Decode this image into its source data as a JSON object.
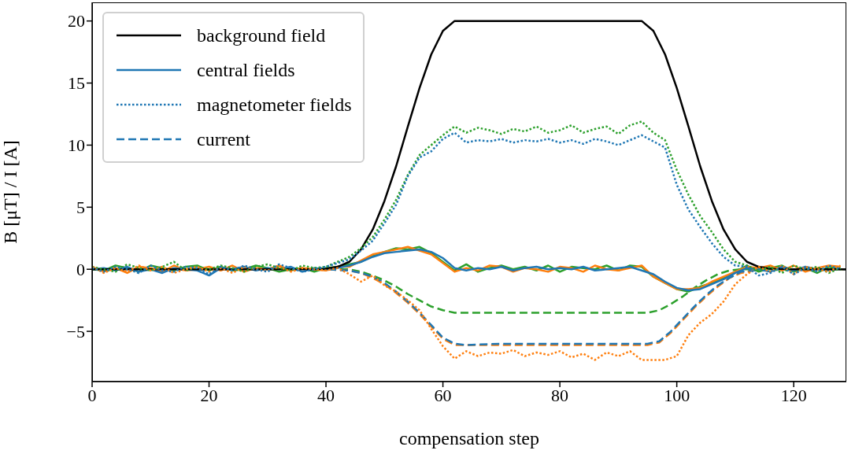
{
  "chart_data": {
    "type": "line",
    "xlabel": "compensation step",
    "ylabel": "B [μT] / I [A]",
    "xlim": [
      0,
      129
    ],
    "ylim": [
      -9.05,
      21.5
    ],
    "xticks": [
      0,
      20,
      40,
      60,
      80,
      100,
      120
    ],
    "yticks": [
      -5,
      0,
      5,
      10,
      15,
      20
    ],
    "legend": "top left",
    "marker": "none",
    "x": [
      0,
      2,
      4,
      6,
      8,
      10,
      12,
      14,
      16,
      18,
      20,
      22,
      24,
      26,
      28,
      30,
      32,
      34,
      36,
      38,
      40,
      42,
      44,
      46,
      48,
      50,
      52,
      54,
      56,
      58,
      60,
      62,
      64,
      66,
      68,
      70,
      72,
      74,
      76,
      78,
      80,
      82,
      84,
      86,
      88,
      90,
      92,
      94,
      96,
      98,
      100,
      102,
      104,
      106,
      108,
      110,
      112,
      114,
      116,
      118,
      120,
      122,
      124,
      126,
      128
    ],
    "series": [
      {
        "name": "background field",
        "color": "#000000",
        "line_style": "solid",
        "x": [
          0,
          10,
          20,
          30,
          38,
          40,
          42,
          44,
          46,
          48,
          50,
          52,
          54,
          56,
          58,
          60,
          62,
          94,
          96,
          98,
          100,
          102,
          104,
          106,
          108,
          110,
          112,
          114,
          116,
          120,
          129
        ],
        "values": [
          0,
          0,
          0,
          0,
          0,
          0.05,
          0.2,
          0.6,
          1.6,
          3.2,
          5.5,
          8.3,
          11.5,
          14.6,
          17.3,
          19.2,
          20,
          20,
          19.2,
          17.3,
          14.6,
          11.5,
          8.3,
          5.5,
          3.2,
          1.6,
          0.6,
          0.2,
          0.05,
          0,
          0
        ]
      },
      {
        "name": "central fields",
        "color": "#1f77b4",
        "line_style": "solid",
        "values": [
          0,
          0.1,
          -0.1,
          0.2,
          -0.2,
          0,
          -0.3,
          0.1,
          0,
          -0.1,
          -0.5,
          0.1,
          0,
          0.2,
          -0.1,
          0.1,
          0,
          0.2,
          -0.2,
          0.1,
          0,
          0.1,
          0.3,
          0.6,
          1.0,
          1.3,
          1.4,
          1.5,
          1.6,
          1.4,
          0.9,
          0.1,
          -0.1,
          0.1,
          0,
          0.2,
          -0.1,
          0.1,
          0.2,
          0,
          0.1,
          0,
          0.2,
          -0.1,
          0,
          0.1,
          0.2,
          -0.1,
          -0.4,
          -1.0,
          -1.5,
          -1.7,
          -1.6,
          -1.2,
          -0.8,
          -0.3,
          0.1,
          0,
          -0.2,
          0.2,
          -0.1,
          0.2,
          0,
          -0.1,
          0.1
        ]
      },
      {
        "color": "#ff7f0e",
        "line_style": "solid",
        "values": [
          0.2,
          -0.2,
          0.1,
          -0.3,
          0.2,
          0.1,
          -0.2,
          0.3,
          -0.1,
          0,
          0.2,
          -0.1,
          0.3,
          -0.2,
          0.1,
          0,
          0.3,
          -0.1,
          0.1,
          0,
          -0.1,
          0.2,
          0.2,
          0.7,
          1.2,
          1.4,
          1.6,
          1.8,
          1.5,
          1.2,
          0.5,
          -0.2,
          0.1,
          -0.1,
          0.3,
          0.2,
          -0.2,
          0.1,
          0,
          -0.2,
          0.2,
          0.1,
          -0.2,
          0.3,
          0,
          -0.1,
          0.1,
          0.3,
          -0.6,
          -1.1,
          -1.6,
          -1.6,
          -1.5,
          -1.0,
          -0.6,
          -0.2,
          0.2,
          0.1,
          0.3,
          -0.1,
          0.3,
          -0.2,
          0.1,
          0.3,
          0.2
        ]
      },
      {
        "color": "#2ca02c",
        "line_style": "solid",
        "values": [
          0,
          -0.1,
          0.3,
          0.1,
          -0.2,
          0.3,
          0.1,
          -0.1,
          0.2,
          0.3,
          -0.1,
          0.2,
          -0.1,
          0,
          0.3,
          0.1,
          -0.2,
          0,
          0.1,
          -0.2,
          0.1,
          0.2,
          0.4,
          0.6,
          1.1,
          1.4,
          1.7,
          1.6,
          1.8,
          1.3,
          0.6,
          -0.1,
          0.4,
          -0.2,
          0.1,
          0.3,
          0,
          0.2,
          -0.1,
          0.3,
          -0.2,
          0.2,
          0.1,
          0,
          0.3,
          -0.1,
          0.3,
          0.2,
          -0.6,
          -1.1,
          -1.6,
          -1.8,
          -1.4,
          -1.1,
          -0.7,
          -0.2,
          0.3,
          -0.2,
          0.1,
          0.3,
          -0.2,
          0.1,
          -0.3,
          0.2,
          0
        ]
      },
      {
        "name": "magnetometer fields",
        "color": "#1f77b4",
        "line_style": "dotted",
        "values": [
          0.1,
          -0.2,
          0.2,
          0,
          -0.3,
          0.3,
          -0.1,
          -0.2,
          0.2,
          0.1,
          -0.4,
          0.2,
          -0.1,
          0.3,
          0,
          -0.2,
          0.4,
          0.1,
          -0.2,
          0,
          0.2,
          0.5,
          0.8,
          1.5,
          2.3,
          3.7,
          5.2,
          7.5,
          9.0,
          9.5,
          10.5,
          11.0,
          10.2,
          10.4,
          10.3,
          10.5,
          10.2,
          10.4,
          10.3,
          10.5,
          10.2,
          10.4,
          10.1,
          10.5,
          10.3,
          10.0,
          10.4,
          10.8,
          10.3,
          9.8,
          6.8,
          4.8,
          3.4,
          2.1,
          1.0,
          0.3,
          0.2,
          -0.5,
          -0.3,
          0.2,
          -0.4,
          0.1,
          -0.2,
          0.3,
          0
        ]
      },
      {
        "color": "#ff7f0e",
        "line_style": "dotted",
        "values": [
          0.2,
          -0.3,
          0.1,
          -0.2,
          0.3,
          -0.1,
          0.2,
          -0.3,
          0,
          0.2,
          -0.2,
          0.1,
          -0.3,
          0.2,
          0,
          -0.1,
          0.2,
          -0.2,
          0.1,
          0,
          -0.1,
          0.1,
          -0.4,
          -1.0,
          -0.5,
          -1.3,
          -1.8,
          -2.5,
          -3.3,
          -4.8,
          -6.2,
          -7.2,
          -6.6,
          -7.0,
          -6.7,
          -6.8,
          -6.5,
          -7.0,
          -6.7,
          -6.9,
          -6.6,
          -7.1,
          -6.8,
          -7.3,
          -6.7,
          -7.0,
          -6.6,
          -7.3,
          -7.3,
          -7.3,
          -7.0,
          -5.3,
          -4.3,
          -3.6,
          -2.6,
          -1.2,
          -0.4,
          0.2,
          -0.2,
          0.3,
          -0.4,
          0.2,
          0,
          -0.2,
          0.3
        ]
      },
      {
        "color": "#2ca02c",
        "line_style": "dotted",
        "values": [
          0.2,
          0,
          -0.2,
          0.4,
          0.1,
          -0.1,
          0.2,
          0.6,
          -0.1,
          0.2,
          0,
          0.3,
          0.1,
          -0.2,
          0.2,
          0.4,
          0.1,
          -0.1,
          0.3,
          0.1,
          0.2,
          0.6,
          1.0,
          1.7,
          2.6,
          4.0,
          5.6,
          7.6,
          9.2,
          10.0,
          10.8,
          11.5,
          11.0,
          11.4,
          11.2,
          10.9,
          11.3,
          11.1,
          11.5,
          11.0,
          11.2,
          11.6,
          11.0,
          11.3,
          11.5,
          10.9,
          11.6,
          11.9,
          11.0,
          10.4,
          8.0,
          6.0,
          4.3,
          3.0,
          1.6,
          0.6,
          0.3,
          -0.1,
          0.2,
          -0.3,
          0.3,
          0,
          0.2,
          -0.3,
          0.1
        ]
      },
      {
        "name": "current",
        "color": "#1f77b4",
        "line_style": "dashed",
        "x": [
          0,
          10,
          20,
          30,
          40,
          44,
          46,
          48,
          50,
          52,
          54,
          56,
          58,
          60,
          62,
          64,
          70,
          80,
          90,
          95,
          97,
          99,
          101,
          103,
          105,
          107,
          109,
          111,
          113,
          120,
          129
        ],
        "values": [
          0,
          0,
          0,
          0,
          0,
          -0.1,
          -0.3,
          -0.6,
          -1.1,
          -1.8,
          -2.6,
          -3.5,
          -4.5,
          -5.5,
          -6.0,
          -6.1,
          -6.0,
          -6.0,
          -6.0,
          -6.0,
          -5.8,
          -5.0,
          -4.0,
          -3.0,
          -2.1,
          -1.3,
          -0.7,
          -0.2,
          -0.1,
          0,
          0
        ]
      },
      {
        "color": "#ff7f0e",
        "line_style": "dashed",
        "x": [
          0,
          10,
          20,
          30,
          40,
          44,
          46,
          48,
          50,
          52,
          54,
          56,
          58,
          60,
          62,
          64,
          70,
          80,
          90,
          95,
          97,
          99,
          101,
          103,
          105,
          107,
          109,
          111,
          113,
          120,
          129
        ],
        "values": [
          0,
          0,
          0,
          0,
          0,
          -0.1,
          -0.3,
          -0.7,
          -1.2,
          -1.9,
          -2.7,
          -3.6,
          -4.6,
          -5.6,
          -6.1,
          -6.1,
          -6.1,
          -6.1,
          -6.1,
          -6.1,
          -5.9,
          -5.1,
          -4.1,
          -3.1,
          -2.2,
          -1.4,
          -0.7,
          -0.3,
          -0.1,
          0,
          0
        ]
      },
      {
        "color": "#2ca02c",
        "line_style": "dashed",
        "x": [
          0,
          10,
          20,
          30,
          40,
          44,
          46,
          48,
          50,
          52,
          54,
          56,
          58,
          60,
          62,
          64,
          70,
          80,
          90,
          95,
          97,
          99,
          101,
          103,
          105,
          107,
          109,
          111,
          113,
          120,
          129
        ],
        "values": [
          0,
          0,
          0,
          0,
          0,
          0,
          -0.2,
          -0.5,
          -0.9,
          -1.4,
          -2.0,
          -2.5,
          -3.0,
          -3.3,
          -3.5,
          -3.5,
          -3.5,
          -3.5,
          -3.5,
          -3.5,
          -3.3,
          -2.8,
          -2.2,
          -1.5,
          -0.9,
          -0.4,
          -0.1,
          0,
          0,
          0,
          0
        ]
      }
    ]
  }
}
